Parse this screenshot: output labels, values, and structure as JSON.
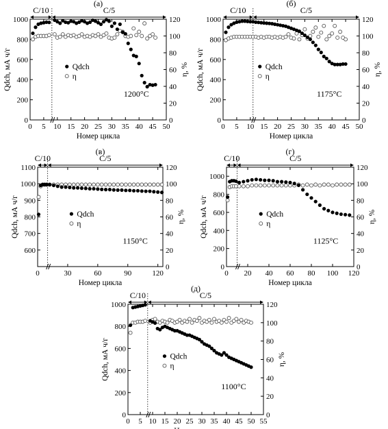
{
  "figure": {
    "xlabel": "Номер цикла",
    "ylabel_left": "Qdch, мА ч/г",
    "ylabel_right": "η, %",
    "legend": {
      "capacity": "Qdch",
      "efficiency": "η"
    }
  },
  "chart_data": [
    {
      "type": "scatter",
      "panel": "(а)",
      "temperature": "1200°C",
      "rate_labels": [
        "C/10",
        "C/5"
      ],
      "rate_switch_cycle": 8,
      "xlim": [
        0,
        50
      ],
      "ylim_left": [
        0,
        1000
      ],
      "ylim_right": [
        0,
        120
      ],
      "xticks": [
        "0",
        "5",
        "10",
        "15",
        "20",
        "25",
        "30",
        "35",
        "40",
        "45",
        "50"
      ],
      "yticks_left": [
        "0",
        "200",
        "400",
        "600",
        "800",
        "1000"
      ],
      "yticks_right": [
        "0",
        "20",
        "40",
        "60",
        "80",
        "100",
        "120"
      ],
      "series": [
        {
          "name": "Qdch",
          "axis": "left",
          "marker": "filled",
          "x": [
            1,
            2,
            3,
            4,
            5,
            6,
            7,
            9,
            10,
            11,
            12,
            13,
            14,
            15,
            16,
            17,
            18,
            19,
            20,
            21,
            22,
            23,
            24,
            25,
            26,
            27,
            28,
            29,
            30,
            31,
            32,
            33,
            34,
            35,
            36,
            37,
            38,
            39,
            40,
            41,
            42,
            43,
            44,
            45,
            46
          ],
          "y": [
            860,
            920,
            950,
            960,
            965,
            970,
            968,
            990,
            975,
            960,
            985,
            970,
            965,
            980,
            975,
            960,
            970,
            985,
            975,
            960,
            970,
            990,
            980,
            965,
            950,
            975,
            995,
            980,
            930,
            960,
            900,
            950,
            870,
            855,
            760,
            700,
            640,
            630,
            560,
            440,
            370,
            330,
            350,
            345,
            350
          ]
        },
        {
          "name": "η",
          "axis": "right",
          "marker": "open",
          "x": [
            1,
            2,
            3,
            4,
            5,
            6,
            7,
            9,
            10,
            11,
            12,
            13,
            14,
            15,
            16,
            17,
            18,
            19,
            20,
            21,
            22,
            23,
            24,
            25,
            26,
            27,
            28,
            29,
            30,
            31,
            32,
            33,
            34,
            35,
            36,
            37,
            38,
            39,
            40,
            41,
            42,
            43,
            44,
            45,
            46
          ],
          "y": [
            96,
            99,
            100,
            100,
            100,
            100,
            101,
            102,
            98,
            99,
            102,
            99,
            101,
            100,
            101,
            99,
            100,
            102,
            99,
            100,
            99,
            101,
            100,
            102,
            99,
            101,
            103,
            98,
            97,
            98,
            102,
            106,
            105,
            100,
            99,
            100,
            109,
            101,
            105,
            100,
            115,
            97,
            100,
            102,
            98
          ]
        }
      ]
    },
    {
      "type": "scatter",
      "panel": "(б)",
      "temperature": "1175°C",
      "rate_labels": [
        "C/10",
        "C/5"
      ],
      "rate_switch_cycle": 11,
      "xlim": [
        0,
        50
      ],
      "ylim_left": [
        0,
        1000
      ],
      "ylim_right": [
        0,
        120
      ],
      "xticks": [
        "0",
        "5",
        "10",
        "15",
        "20",
        "25",
        "30",
        "35",
        "40",
        "45",
        "50"
      ],
      "yticks_left": [
        "0",
        "200",
        "400",
        "600",
        "800",
        "1000"
      ],
      "yticks_right": [
        "0",
        "20",
        "40",
        "60",
        "80",
        "100",
        "120"
      ],
      "series": [
        {
          "name": "Qdch",
          "axis": "left",
          "marker": "filled",
          "x": [
            1,
            2,
            3,
            4,
            5,
            6,
            7,
            8,
            9,
            10,
            11,
            12,
            13,
            14,
            15,
            16,
            17,
            18,
            19,
            20,
            21,
            22,
            23,
            24,
            25,
            26,
            27,
            28,
            29,
            30,
            31,
            32,
            33,
            34,
            35,
            36,
            37,
            38,
            39,
            40,
            41,
            42,
            43,
            44,
            45
          ],
          "y": [
            870,
            920,
            945,
            960,
            970,
            975,
            980,
            980,
            978,
            975,
            975,
            970,
            968,
            965,
            962,
            960,
            958,
            955,
            950,
            945,
            940,
            935,
            930,
            920,
            910,
            900,
            890,
            880,
            860,
            840,
            820,
            800,
            770,
            740,
            700,
            670,
            630,
            610,
            580,
            560,
            550,
            550,
            550,
            555,
            555
          ]
        },
        {
          "name": "η",
          "axis": "right",
          "marker": "open",
          "x": [
            1,
            2,
            3,
            4,
            5,
            6,
            7,
            8,
            9,
            10,
            11,
            12,
            13,
            14,
            15,
            16,
            17,
            18,
            19,
            20,
            21,
            22,
            23,
            24,
            25,
            26,
            27,
            28,
            29,
            30,
            31,
            32,
            33,
            34,
            35,
            36,
            37,
            38,
            39,
            40,
            41,
            42,
            43,
            44,
            45
          ],
          "y": [
            95,
            97,
            98,
            99,
            99,
            99,
            99,
            99,
            99,
            99,
            99,
            99,
            98,
            99,
            98,
            99,
            99,
            98,
            99,
            98,
            99,
            98,
            99,
            102,
            98,
            97,
            103,
            96,
            101,
            108,
            97,
            100,
            105,
            110,
            99,
            104,
            112,
            96,
            100,
            103,
            112,
            98,
            105,
            98,
            96
          ]
        }
      ]
    },
    {
      "type": "scatter",
      "panel": "(в)",
      "temperature": "1150°C",
      "rate_labels": [
        "C/10",
        "C/5"
      ],
      "rate_switch_cycle": 10,
      "xlim": [
        0,
        125
      ],
      "ylim_left": [
        500,
        1100
      ],
      "ylim_right": [
        0,
        120
      ],
      "xticks": [
        "0",
        "30",
        "60",
        "90",
        "120"
      ],
      "yticks_left": [
        "600",
        "700",
        "800",
        "900",
        "1000",
        "1100"
      ],
      "yticks_right": [
        "0",
        "20",
        "40",
        "60",
        "80",
        "100",
        "120"
      ],
      "series": [
        {
          "name": "Qdch",
          "axis": "left",
          "marker": "filled",
          "x": [
            1,
            3,
            5,
            7,
            9,
            12,
            16,
            20,
            24,
            28,
            32,
            36,
            40,
            44,
            48,
            52,
            56,
            60,
            64,
            68,
            72,
            76,
            80,
            84,
            88,
            92,
            96,
            100,
            104,
            108,
            112,
            116,
            120,
            124
          ],
          "y": [
            815,
            990,
            995,
            995,
            995,
            995,
            990,
            985,
            980,
            980,
            978,
            975,
            975,
            973,
            972,
            970,
            970,
            968,
            966,
            965,
            965,
            963,
            962,
            962,
            960,
            960,
            958,
            958,
            956,
            955,
            955,
            952,
            950,
            948
          ]
        },
        {
          "name": "η",
          "axis": "right",
          "marker": "open",
          "x": [
            1,
            3,
            5,
            7,
            9,
            12,
            16,
            20,
            24,
            28,
            32,
            36,
            40,
            44,
            48,
            52,
            56,
            60,
            64,
            68,
            72,
            76,
            80,
            84,
            88,
            92,
            96,
            100,
            104,
            108,
            112,
            116,
            120,
            124
          ],
          "y": [
            84,
            97,
            99,
            99,
            99,
            99,
            99,
            99,
            99,
            99,
            99,
            99,
            99,
            99,
            99,
            99,
            99,
            99,
            99,
            99,
            99,
            99,
            99,
            99,
            99,
            99,
            99,
            99,
            99,
            99,
            99,
            99,
            99,
            99
          ]
        }
      ]
    },
    {
      "type": "scatter",
      "panel": "(г)",
      "temperature": "1125°C",
      "rate_labels": [
        "C/10",
        "C/5"
      ],
      "rate_switch_cycle": 10,
      "xlim": [
        0,
        120
      ],
      "ylim_left": [
        0,
        1100
      ],
      "ylim_right": [
        0,
        120
      ],
      "xticks": [
        "0",
        "20",
        "40",
        "60",
        "80",
        "100",
        "120"
      ],
      "yticks_left": [
        "0",
        "200",
        "400",
        "600",
        "800",
        "1000"
      ],
      "yticks_right": [
        "0",
        "20",
        "40",
        "60",
        "80",
        "100",
        "120"
      ],
      "series": [
        {
          "name": "Qdch",
          "axis": "left",
          "marker": "filled",
          "x": [
            1,
            3,
            5,
            7,
            9,
            12,
            16,
            20,
            24,
            28,
            32,
            36,
            40,
            44,
            48,
            52,
            56,
            60,
            64,
            68,
            72,
            76,
            80,
            84,
            88,
            92,
            96,
            100,
            104,
            108,
            112,
            116
          ],
          "y": [
            770,
            940,
            950,
            950,
            945,
            930,
            940,
            950,
            960,
            965,
            960,
            955,
            955,
            950,
            940,
            940,
            935,
            930,
            920,
            900,
            850,
            800,
            760,
            720,
            680,
            640,
            620,
            600,
            590,
            580,
            575,
            570
          ]
        },
        {
          "name": "η",
          "axis": "right",
          "marker": "open",
          "x": [
            1,
            3,
            5,
            7,
            9,
            12,
            16,
            20,
            24,
            28,
            32,
            36,
            40,
            44,
            48,
            52,
            56,
            60,
            64,
            68,
            72,
            76,
            80,
            84,
            88,
            92,
            96,
            100,
            104,
            108,
            112,
            116
          ],
          "y": [
            80,
            96,
            97,
            97,
            97,
            97,
            97,
            97,
            98,
            98,
            98,
            98,
            98,
            98,
            98,
            98,
            98,
            98,
            98,
            99,
            98,
            99,
            98,
            99,
            98,
            99,
            99,
            98,
            99,
            99,
            99,
            99
          ]
        }
      ]
    },
    {
      "type": "scatter",
      "panel": "(д)",
      "temperature": "1100°C",
      "rate_labels": [
        "C/10",
        "C/5"
      ],
      "rate_switch_cycle": 8,
      "xlim": [
        0,
        55
      ],
      "ylim_left": [
        0,
        1000
      ],
      "ylim_right": [
        0,
        120
      ],
      "xticks": [
        "0",
        "5",
        "10",
        "15",
        "20",
        "25",
        "30",
        "35",
        "40",
        "45",
        "50",
        "55"
      ],
      "yticks_left": [
        "0",
        "200",
        "400",
        "600",
        "800",
        "1000"
      ],
      "yticks_right": [
        "0",
        "20",
        "40",
        "60",
        "80",
        "100",
        "120"
      ],
      "series": [
        {
          "name": "Qdch",
          "axis": "left",
          "marker": "filled",
          "x": [
            1,
            2,
            3,
            4,
            5,
            6,
            7,
            9,
            10,
            11,
            12,
            13,
            14,
            15,
            16,
            17,
            18,
            19,
            20,
            21,
            22,
            23,
            24,
            25,
            26,
            27,
            28,
            29,
            30,
            31,
            32,
            33,
            34,
            35,
            36,
            37,
            38,
            39,
            40,
            41,
            42,
            43,
            44,
            45,
            46,
            47,
            48,
            49,
            50
          ],
          "y": [
            810,
            970,
            975,
            980,
            985,
            990,
            995,
            850,
            840,
            830,
            780,
            770,
            790,
            800,
            790,
            780,
            770,
            760,
            760,
            750,
            740,
            730,
            720,
            720,
            710,
            700,
            690,
            680,
            660,
            640,
            630,
            620,
            600,
            580,
            560,
            550,
            540,
            560,
            540,
            520,
            510,
            500,
            490,
            480,
            470,
            460,
            450,
            440,
            430
          ]
        },
        {
          "name": "η",
          "axis": "right",
          "marker": "open",
          "x": [
            1,
            2,
            3,
            4,
            5,
            6,
            7,
            9,
            10,
            11,
            12,
            13,
            14,
            15,
            16,
            17,
            18,
            19,
            20,
            21,
            22,
            23,
            24,
            25,
            26,
            27,
            28,
            29,
            30,
            31,
            32,
            33,
            34,
            35,
            36,
            37,
            38,
            39,
            40,
            41,
            42,
            43,
            44,
            45,
            46,
            47,
            48,
            49,
            50
          ],
          "y": [
            89,
            100,
            100,
            101,
            101,
            101,
            102,
            100,
            103,
            104,
            101,
            100,
            102,
            101,
            100,
            103,
            102,
            100,
            101,
            103,
            100,
            102,
            101,
            104,
            100,
            103,
            102,
            105,
            100,
            102,
            101,
            103,
            100,
            104,
            101,
            102,
            100,
            103,
            101,
            105,
            100,
            102,
            104,
            101,
            103,
            100,
            102,
            101,
            100
          ]
        }
      ]
    }
  ]
}
